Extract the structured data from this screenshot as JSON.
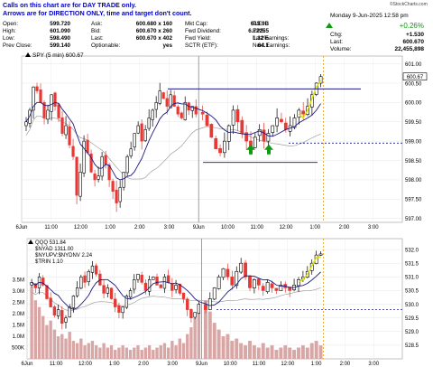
{
  "note": {
    "line1": "Calls on this chart are for DAY TRADE only.",
    "line2": "Arrows are for DIRECTION ONLY, time and target don't count."
  },
  "watermark": "©StockCharts.com",
  "date_line": "Monday   9-Jun-2025  12:58 pm",
  "quote": {
    "rows": [
      [
        {
          "l": "Open:",
          "v": "599.720"
        },
        {
          "l": "Ask:",
          "v": "600.680 x 160"
        },
        {
          "l": "Mkt Cap:",
          "v": "613.9B"
        },
        {
          "l": "P/E:",
          "v": ""
        }
      ],
      [
        {
          "l": "High:",
          "v": "601.090"
        },
        {
          "l": "Bid:",
          "v": "600.670 x 260"
        },
        {
          "l": "Fwd Dividend:",
          "v": "6.72255"
        },
        {
          "l": "EPS:",
          "v": ""
        }
      ],
      [
        {
          "l": "Low:",
          "v": "598.490"
        },
        {
          "l": "Last:",
          "v": "600.670 x 402"
        },
        {
          "l": "Fwd Yield:",
          "v": "1.12%"
        },
        {
          "l": "Last Earnings:",
          "v": ""
        }
      ],
      [
        {
          "l": "Prev Close:",
          "v": "599.140"
        },
        {
          "l": "Optionable:",
          "v": "yes"
        },
        {
          "l": "SCTR (ETF):",
          "v": "64.1"
        },
        {
          "l": "Next Earnings:",
          "v": ""
        }
      ]
    ],
    "pct_change": "+0.26%",
    "chg_label": "Chg:",
    "chg_value": "+1.530",
    "last_label": "Last:",
    "last_value": "600.670",
    "volume_label": "Volume:",
    "volume_value": "22,455,898"
  },
  "colors": {
    "up": "#000000",
    "down": "#e53935",
    "ma_fast": "#1a1a80",
    "ma_slow": "#a0a0a0",
    "hline": "#1a1a80",
    "volume": "#d9a6a6",
    "price_line": "#e0e000",
    "arrow": "#119911",
    "marker": "#e8a000",
    "note_text": "#0000cc"
  },
  "chart_data": [
    {
      "type": "candlestick",
      "title": "SPY (5 min) 600.67",
      "icon": "triangle-up-icon",
      "ylim": [
        596.9,
        601.2
      ],
      "yticks": [
        "601.00",
        "600.50",
        "600.00",
        "599.50",
        "599.00",
        "598.50",
        "598.00",
        "597.50",
        "597.00"
      ],
      "yticks_values": [
        601.0,
        600.5,
        600.0,
        599.5,
        599.0,
        598.5,
        598.0,
        597.5,
        597.0
      ],
      "current_price": 600.67,
      "current_price_label": "600.67",
      "annotations_lines": [
        {
          "y": 600.35,
          "label": "resistance"
        },
        {
          "y": 598.45,
          "label": "support"
        },
        {
          "y": 598.95,
          "label": "dashed-level"
        }
      ],
      "arrows": [
        598.8,
        598.8
      ],
      "session_split_label": "9Jun",
      "xticks_day1": [
        "6Jun",
        "11:00",
        "12:00",
        "1:00",
        "2:00",
        "3:00"
      ],
      "xticks_day2": [
        "9Jun",
        "10:00",
        "11:00",
        "12:00",
        "1:00",
        "2:00",
        "3:00"
      ],
      "day1_closes": [
        599.5,
        599.8,
        600.4,
        600.3,
        600.0,
        599.6,
        599.8,
        600.2,
        599.9,
        599.6,
        599.2,
        599.4,
        598.9,
        598.6,
        597.6,
        598.2,
        599.0,
        598.7,
        598.2,
        598.0,
        598.1,
        598.6,
        598.4,
        598.0,
        597.7,
        597.4,
        597.8,
        598.2,
        598.6,
        598.8,
        599.2,
        599.4,
        599.0,
        599.3,
        599.6,
        599.8,
        600.0,
        600.3,
        600.1,
        599.9,
        600.2,
        599.9,
        599.7,
        599.6,
        600.0,
        599.8,
        599.9,
        599.7
      ],
      "day2_closes": [
        599.7,
        599.4,
        599.1,
        598.8,
        598.7,
        599.0,
        599.4,
        599.8,
        599.5,
        599.2,
        599.0,
        598.8,
        599.1,
        599.3,
        599.0,
        599.2,
        599.4,
        599.6,
        599.5,
        599.3,
        599.4,
        599.6,
        599.8,
        599.7,
        599.9,
        600.2,
        600.5,
        600.67
      ]
    },
    {
      "type": "candlestick",
      "title": "QQQ 531.84",
      "icon": "triangle-up-icon",
      "legend": [
        "QQQ 531.84",
        "$NYAD 1311.00",
        "$NYUPV:$NYDNV 2.24",
        "$TRIN 1.10"
      ],
      "ylim": [
        528.0,
        532.4
      ],
      "yticks": [
        "532.0",
        "531.5",
        "531.0",
        "530.5",
        "530.0",
        "529.5",
        "529.0",
        "528.5"
      ],
      "yticks_values": [
        532.0,
        531.5,
        531.0,
        530.5,
        530.0,
        529.5,
        529.0,
        528.5
      ],
      "volume_ticks": [
        "3.5M",
        "3.0M",
        "2.5M",
        "2.0M",
        "1.5M",
        "1.0M",
        "500K"
      ],
      "volume_ticks_values": [
        3.5,
        3.0,
        2.5,
        2.0,
        1.5,
        1.0,
        0.5
      ],
      "current_price": 531.84,
      "dashed_level": 529.8,
      "xticks_day1": [
        "6Jun",
        "11:00",
        "12:00",
        "1:00",
        "2:00",
        "3:00"
      ],
      "xticks_day2": [
        "9Jun",
        "10:00",
        "11:00",
        "12:00",
        "1:00",
        "2:00",
        "3:00"
      ],
      "day1_closes": [
        530.8,
        530.6,
        531.0,
        530.7,
        530.2,
        529.9,
        529.6,
        529.8,
        529.3,
        529.5,
        529.9,
        530.3,
        530.6,
        531.0,
        530.8,
        531.2,
        531.4,
        531.1,
        530.7,
        530.4,
        530.6,
        530.2,
        529.9,
        529.7,
        529.9,
        530.3,
        530.5,
        530.9,
        531.1,
        530.8,
        530.5,
        530.9,
        531.0,
        530.7,
        530.6,
        531.0,
        530.8,
        530.5,
        530.7,
        530.4,
        530.2,
        529.8,
        529.5,
        529.7,
        530.0
      ],
      "day2_closes": [
        529.8,
        530.2,
        530.6,
        531.0,
        531.3,
        531.0,
        530.7,
        531.2,
        531.5,
        531.0,
        530.6,
        530.9,
        530.7,
        530.5,
        530.8,
        530.6,
        530.5,
        530.7,
        530.6,
        530.5,
        530.7,
        530.9,
        531.0,
        531.2,
        531.5,
        531.8,
        531.84
      ],
      "volumes_day1": [
        3.2,
        2.6,
        2.3,
        1.9,
        1.5,
        1.7,
        1.3,
        1.0,
        1.1,
        0.9,
        1.2,
        0.8,
        0.7,
        0.9,
        0.6,
        0.7,
        0.8,
        0.6,
        0.5,
        0.7,
        0.5,
        0.6,
        0.4,
        0.5,
        0.6,
        0.5,
        0.4,
        0.5,
        0.6,
        0.4,
        0.5,
        0.6,
        0.4,
        0.5,
        0.6,
        0.7,
        0.5,
        0.8,
        0.6,
        0.9,
        0.7,
        1.1,
        1.4,
        1.8,
        2.4
      ],
      "volumes_day2": [
        2.6,
        2.1,
        1.6,
        1.3,
        1.0,
        1.1,
        0.8,
        0.9,
        0.7,
        0.6,
        0.8,
        0.6,
        0.5,
        0.7,
        0.5,
        0.6,
        0.4,
        0.5,
        0.6,
        0.5,
        0.4,
        0.5,
        0.6,
        0.5,
        0.7,
        0.8,
        0.6
      ]
    }
  ]
}
